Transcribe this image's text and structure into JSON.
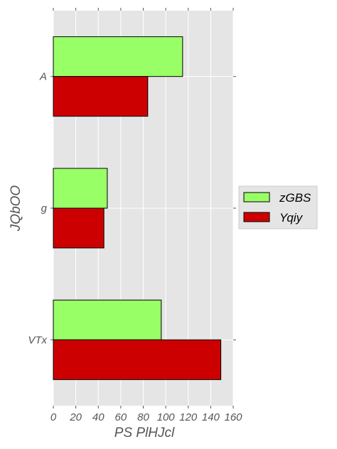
{
  "chart_data": {
    "type": "bar",
    "orientation": "horizontal",
    "categories": [
      "A",
      "g",
      "VTx"
    ],
    "series": [
      {
        "name": "zGBS",
        "values": [
          115,
          48,
          96
        ],
        "color": "#99ff66"
      },
      {
        "name": "Yqiy",
        "values": [
          84,
          45,
          149
        ],
        "color": "#cc0000"
      }
    ],
    "xlabel": "PS PlHJcl",
    "ylabel": "JQbOO",
    "xlim": [
      0,
      160
    ],
    "xticks": [
      "0",
      "20",
      "40",
      "60",
      "80",
      "100",
      "120",
      "140",
      "160"
    ],
    "grid": true,
    "legend_position": "right-outside",
    "plot_background": "#e5e5e5",
    "grid_color": "#ffffff"
  }
}
